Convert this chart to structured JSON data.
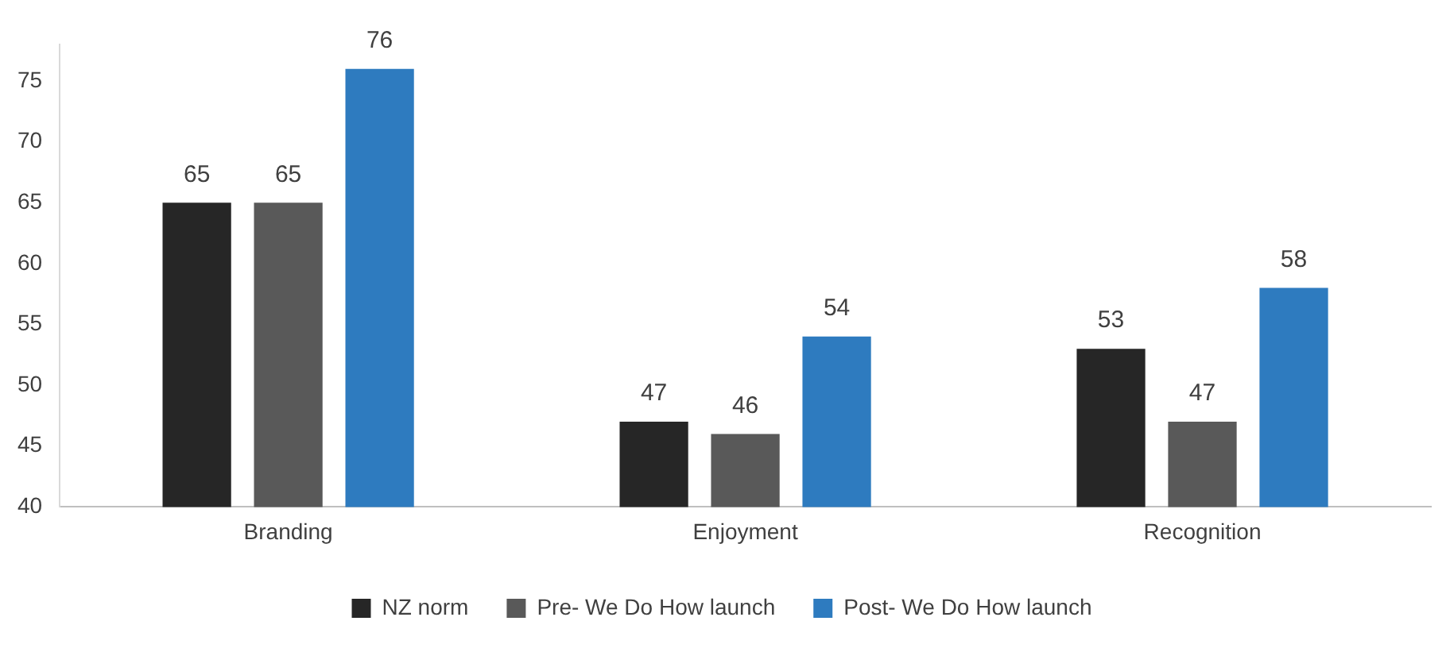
{
  "chart_data": {
    "type": "bar",
    "categories": [
      "Branding",
      "Enjoyment",
      "Recognition"
    ],
    "series": [
      {
        "name": "NZ norm",
        "color": "#262626",
        "values": [
          65,
          47,
          53
        ]
      },
      {
        "name": "Pre- We Do How launch",
        "color": "#595959",
        "values": [
          65,
          46,
          47
        ]
      },
      {
        "name": "Post- We Do How launch",
        "color": "#2e7bbf",
        "values": [
          76,
          54,
          58
        ]
      }
    ],
    "ylim": [
      40,
      78
    ],
    "yticks": [
      40,
      45,
      50,
      55,
      60,
      65,
      70,
      75
    ],
    "grid": false,
    "legend": "bottom",
    "data_labels": true
  }
}
